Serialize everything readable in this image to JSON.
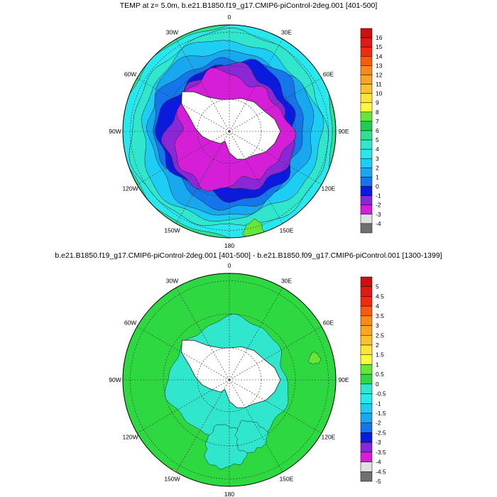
{
  "panel1": {
    "title": "TEMP at z=   5.0m, b.e21.B1850.f19_g17.CMIP6-piControl-2deg.001 [401-500]",
    "lon_labels": [
      "0",
      "30E",
      "60E",
      "90E",
      "120E",
      "150E",
      "180",
      "150W",
      "120W",
      "90W",
      "60W",
      "30W"
    ],
    "colorbar": {
      "labels": [
        "16",
        "15",
        "14",
        "13",
        "12",
        "11",
        "10",
        "9",
        "8",
        "7",
        "6",
        "5",
        "4",
        "3",
        "2",
        "1",
        "0",
        "-1",
        "-2",
        "-3",
        "-4"
      ],
      "colors": [
        "#cc1010",
        "#e41818",
        "#f42a0e",
        "#f75b10",
        "#f88a1a",
        "#f9a624",
        "#fbc22e",
        "#fce634",
        "#fafb3a",
        "#66e636",
        "#20cc52",
        "#30e08c",
        "#30e6cc",
        "#28e8ee",
        "#1ecdf3",
        "#18a8f0",
        "#1575eb",
        "#0a1ae0",
        "#8a28d8",
        "#d41ed8",
        "#e0e0e0",
        "#707070"
      ]
    }
  },
  "panel2": {
    "title": "b.e21.B1850.f19_g17.CMIP6-piControl-2deg.001 [401-500] - b.e21.B1850.f09_g17.CMIP6-piControl.001 [1300-1399]",
    "lon_labels": [
      "0",
      "30E",
      "60E",
      "90E",
      "120E",
      "150E",
      "180",
      "150W",
      "120W",
      "90W",
      "60W",
      "30W"
    ],
    "colorbar": {
      "labels": [
        "5",
        "4.5",
        "4",
        "3.5",
        "3",
        "2.5",
        "2",
        "1.5",
        "1",
        "0.5",
        "0",
        "-0.5",
        "-1",
        "-1.5",
        "-2",
        "-2.5",
        "-3",
        "-3.5",
        "-4",
        "-4.5",
        "-5"
      ],
      "colors": [
        "#cc1010",
        "#e41818",
        "#f42a0e",
        "#f75b10",
        "#f88a1a",
        "#f9a624",
        "#fbc22e",
        "#fce634",
        "#fafb3a",
        "#66e636",
        "#2ed840",
        "#30e6cc",
        "#28e8ee",
        "#1ecdf3",
        "#18a8f0",
        "#1575eb",
        "#0a1ae0",
        "#8a28d8",
        "#d41ed8",
        "#e0e0e0",
        "#707070"
      ]
    }
  }
}
